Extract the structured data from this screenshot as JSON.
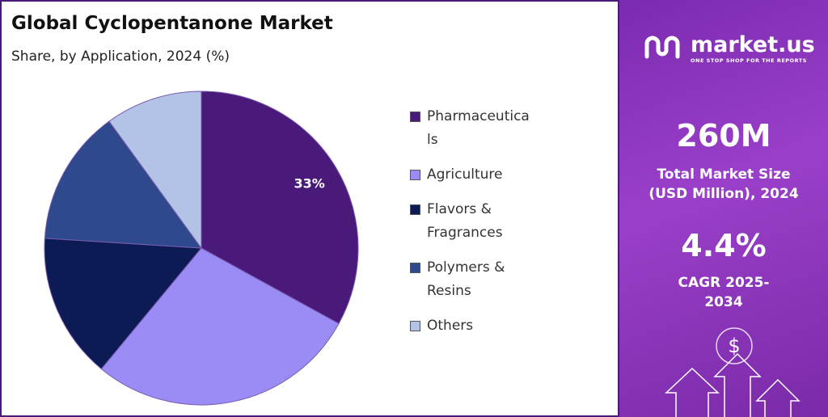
{
  "chart_data": {
    "type": "pie",
    "title": "Global Cyclopentanone Market",
    "subtitle": "Share, by Application, 2024 (%)",
    "categories": [
      "Pharmaceuticals",
      "Agriculture",
      "Flavors & Fragrances",
      "Polymers & Resins",
      "Others"
    ],
    "values": [
      33,
      28,
      15,
      14,
      10
    ],
    "value_labels": [
      "33%",
      null,
      null,
      null,
      null
    ],
    "colors": [
      "#4a1a7a",
      "#9b8cf5",
      "#0d1b55",
      "#2e4a8c",
      "#b3c3e6"
    ]
  },
  "panel": {
    "brand": "market.us",
    "tagline": "ONE STOP SHOP FOR THE REPORTS",
    "market_size": "260M",
    "market_size_label": "Total Market Size (USD Million), 2024",
    "cagr": "4.4%",
    "cagr_label": "CAGR 2025-2034"
  }
}
